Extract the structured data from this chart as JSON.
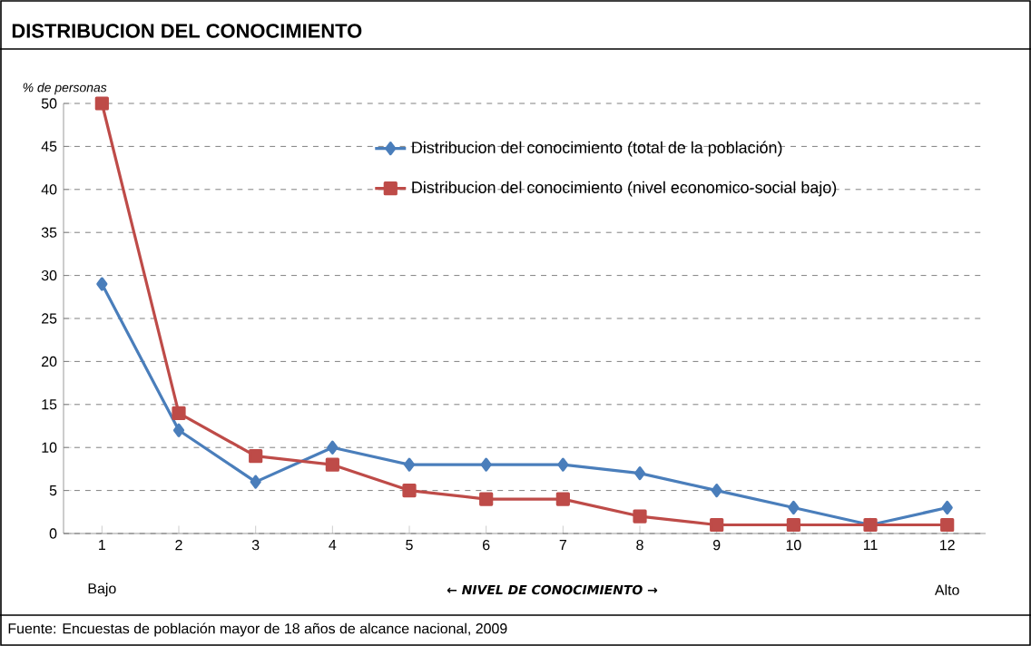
{
  "chart_data": {
    "type": "line",
    "title": "DISTRIBUCION DEL CONOCIMIENTO",
    "ylabel": "% de personas",
    "xlabel": "← NIVEL DE CONOCIMIENTO →",
    "categories": [
      "1",
      "2",
      "3",
      "4",
      "5",
      "6",
      "7",
      "8",
      "9",
      "10",
      "11",
      "12"
    ],
    "series": [
      {
        "name": "Distribucion del conocimiento (total de la población)",
        "color": "#4a7ebb",
        "marker": "diamond",
        "values": [
          29,
          12,
          6,
          10,
          8,
          8,
          8,
          7,
          5,
          3,
          1,
          3
        ]
      },
      {
        "name": "Distribucion del conocimiento (nivel economico-social bajo)",
        "color": "#be4b48",
        "marker": "square",
        "values": [
          50,
          14,
          9,
          8,
          5,
          4,
          4,
          2,
          1,
          1,
          1,
          1
        ]
      }
    ],
    "ylim": [
      0,
      50
    ],
    "yticks": [
      0,
      5,
      10,
      15,
      20,
      25,
      30,
      35,
      40,
      45,
      50
    ],
    "grid": "y",
    "legend": "top right",
    "annotations": [
      "Bajo",
      "Alto",
      "Fuente: Encuestas de población mayor de 18 años de alcance nacional, 2009"
    ]
  }
}
